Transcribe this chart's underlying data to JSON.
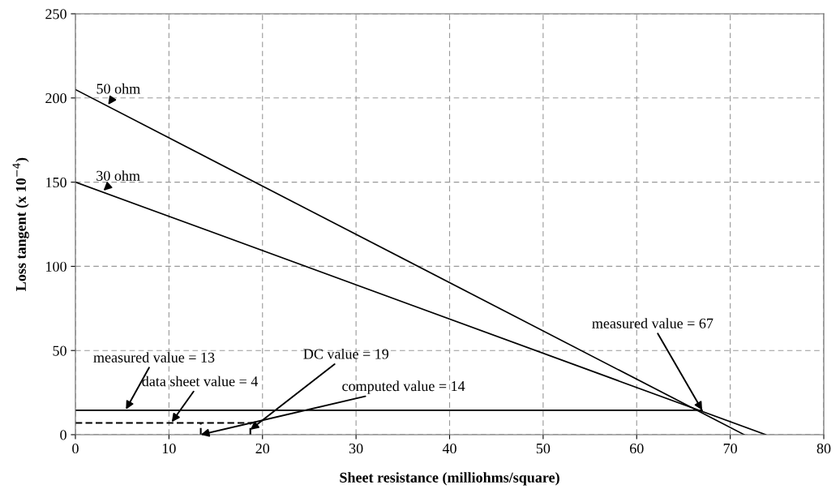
{
  "chart_data": {
    "type": "line",
    "xlabel": "Sheet resistance (milliohms/square)",
    "ylabel": "Loss tangent (x 10$^{−4}$)",
    "xlim": [
      0,
      80
    ],
    "xticks": [
      0,
      10,
      20,
      30,
      40,
      50,
      60,
      70,
      80
    ],
    "ylim": [
      0,
      250
    ],
    "yticks": [
      0,
      50,
      100,
      150,
      200,
      250
    ],
    "grid": true,
    "marker": "none",
    "series": [
      {
        "color": "#000000",
        "x": [
          0,
          71.5
        ],
        "values": [
          205,
          0
        ],
        "line_style": "solid"
      },
      {
        "color": "#000000",
        "x": [
          0,
          73.8
        ],
        "values": [
          150,
          0
        ],
        "line_style": "solid"
      },
      {
        "color": "#000000",
        "x": [
          0,
          67
        ],
        "values": [
          14.5,
          14.5
        ],
        "line_style": "solid"
      },
      {
        "color": "#000000",
        "x": [
          0,
          19
        ],
        "values": [
          7,
          7
        ],
        "line_style": "dashed"
      },
      {
        "color": "#000000",
        "x": [
          13.4,
          13.4
        ],
        "values": [
          0,
          7
        ],
        "line_style": "dashed"
      },
      {
        "color": "#000000",
        "x": [
          18.7,
          18.7
        ],
        "values": [
          0,
          7
        ],
        "line_style": "dashed"
      }
    ],
    "annotations": [
      {
        "text": "50 ohm",
        "x": 3.5,
        "y": 196
      },
      {
        "text": "30 ohm",
        "x": 3,
        "y": 145
      },
      {
        "text": "measured value = 13",
        "x": 5.4,
        "y": 15
      },
      {
        "text": "data sheet value = 4",
        "x": 10.3,
        "y": 7.5
      },
      {
        "text": "DC value = 19",
        "x": 18.7,
        "y": 3
      },
      {
        "text": "computed value = 14",
        "x": 13.4,
        "y": 0
      },
      {
        "text": "measured value = 67",
        "x": 67,
        "y": 14.5
      }
    ]
  }
}
